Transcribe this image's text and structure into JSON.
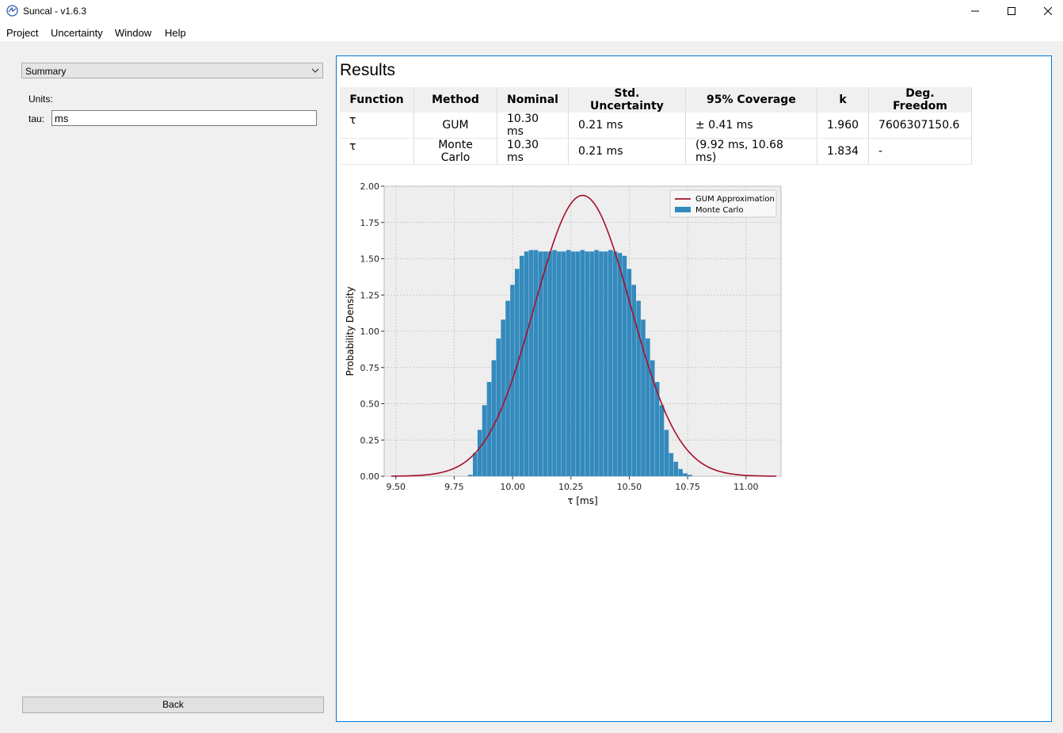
{
  "window": {
    "title": "Suncal - v1.6.3"
  },
  "menu": [
    "Project",
    "Uncertainty",
    "Window",
    "Help"
  ],
  "left": {
    "view_select": "Summary",
    "units_label": "Units:",
    "tau_label": "tau:",
    "tau_value": "ms",
    "back_label": "Back"
  },
  "results": {
    "title": "Results",
    "headers": [
      "Function",
      "Method",
      "Nominal",
      "Std. Uncertainty",
      "95% Coverage",
      "k",
      "Deg. Freedom"
    ],
    "rows": [
      [
        "τ",
        "GUM",
        "10.30 ms",
        "0.21 ms",
        "± 0.41 ms",
        "1.960",
        "7606307150.6"
      ],
      [
        "τ",
        "Monte Carlo",
        "10.30 ms",
        "0.21 ms",
        "(9.92 ms, 10.68 ms)",
        "1.834",
        "-"
      ]
    ]
  },
  "colors": {
    "accent": "#0078d7",
    "gum_line": "#a50f2c",
    "mc_bars": "#348abd",
    "plot_bg": "#eeeeee"
  },
  "chart_data": {
    "type": "bar",
    "xlabel": "τ [ms]",
    "ylabel": "Probability Density",
    "xlim": [
      9.45,
      11.15
    ],
    "ylim": [
      0,
      2.0
    ],
    "xticks": [
      9.5,
      9.75,
      10.0,
      10.25,
      10.5,
      10.75,
      11.0
    ],
    "xtick_labels": [
      "9.50",
      "9.75",
      "10.00",
      "10.25",
      "10.50",
      "10.75",
      "11.00"
    ],
    "yticks": [
      0,
      0.25,
      0.5,
      0.75,
      1.0,
      1.25,
      1.5,
      1.75,
      2.0
    ],
    "ytick_labels": [
      "0.00",
      "0.25",
      "0.50",
      "0.75",
      "1.00",
      "1.25",
      "1.50",
      "1.75",
      "2.00"
    ],
    "grid": true,
    "legend": "top-right",
    "series": [
      {
        "name": "GUM Approximation",
        "type": "line",
        "mean": 10.3,
        "std": 0.206,
        "x_range": [
          9.48,
          11.13
        ],
        "color": "#a50f2c"
      },
      {
        "name": "Monte Carlo",
        "type": "histogram",
        "color": "#348abd",
        "bins": [
          [
            9.82,
            0.01
          ],
          [
            9.84,
            0.16
          ],
          [
            9.86,
            0.32
          ],
          [
            9.88,
            0.49
          ],
          [
            9.9,
            0.65
          ],
          [
            9.92,
            0.8
          ],
          [
            9.94,
            0.95
          ],
          [
            9.96,
            1.08
          ],
          [
            9.98,
            1.21
          ],
          [
            10.0,
            1.32
          ],
          [
            10.02,
            1.43
          ],
          [
            10.04,
            1.52
          ],
          [
            10.06,
            1.55
          ],
          [
            10.08,
            1.56
          ],
          [
            10.1,
            1.56
          ],
          [
            10.12,
            1.55
          ],
          [
            10.14,
            1.55
          ],
          [
            10.16,
            1.55
          ],
          [
            10.18,
            1.56
          ],
          [
            10.2,
            1.55
          ],
          [
            10.22,
            1.55
          ],
          [
            10.24,
            1.56
          ],
          [
            10.26,
            1.55
          ],
          [
            10.28,
            1.55
          ],
          [
            10.3,
            1.56
          ],
          [
            10.32,
            1.55
          ],
          [
            10.34,
            1.55
          ],
          [
            10.36,
            1.56
          ],
          [
            10.38,
            1.55
          ],
          [
            10.4,
            1.55
          ],
          [
            10.42,
            1.56
          ],
          [
            10.44,
            1.55
          ],
          [
            10.46,
            1.54
          ],
          [
            10.48,
            1.52
          ],
          [
            10.5,
            1.43
          ],
          [
            10.52,
            1.32
          ],
          [
            10.54,
            1.21
          ],
          [
            10.56,
            1.08
          ],
          [
            10.58,
            0.95
          ],
          [
            10.6,
            0.8
          ],
          [
            10.62,
            0.65
          ],
          [
            10.64,
            0.49
          ],
          [
            10.66,
            0.32
          ],
          [
            10.68,
            0.16
          ],
          [
            10.7,
            0.1
          ],
          [
            10.72,
            0.05
          ],
          [
            10.74,
            0.02
          ],
          [
            10.76,
            0.01
          ]
        ],
        "bin_width": 0.02
      }
    ]
  }
}
